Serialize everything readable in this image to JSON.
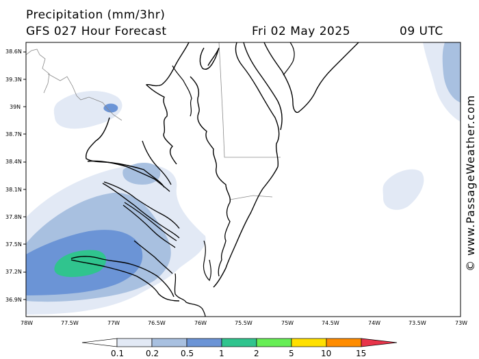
{
  "header": {
    "title": "Precipitation (mm/3hr)",
    "model": "GFS 027 Hour Forecast",
    "valid_date": "Fri 02 May 2025",
    "valid_hour": "09 UTC"
  },
  "watermark": "© www.PassageWeather.com",
  "map": {
    "lat_labels": [
      "38.6N",
      "39.3N",
      "39N",
      "38.7N",
      "38.4N",
      "38.1N",
      "37.8N",
      "37.5N",
      "37.2N",
      "36.9N"
    ],
    "lon_labels": [
      "78W",
      "77.5W",
      "77W",
      "76.5W",
      "76W",
      "75.5W",
      "75W",
      "74.5W",
      "74W",
      "73.5W",
      "73W"
    ]
  },
  "legend": {
    "labels": [
      "0.1",
      "0.2",
      "0.5",
      "1",
      "2",
      "5",
      "10",
      "15"
    ],
    "colors": [
      "#e2e9f5",
      "#a8c0e0",
      "#6b94d6",
      "#30c48e",
      "#66ee55",
      "#ffe000",
      "#ff8c00",
      "#e8344a"
    ]
  },
  "precip_colors": {
    "light": "#e2e9f5",
    "moderate": "#a8c0e0",
    "heavy": "#6b94d6",
    "very_heavy": "#30c48e"
  }
}
